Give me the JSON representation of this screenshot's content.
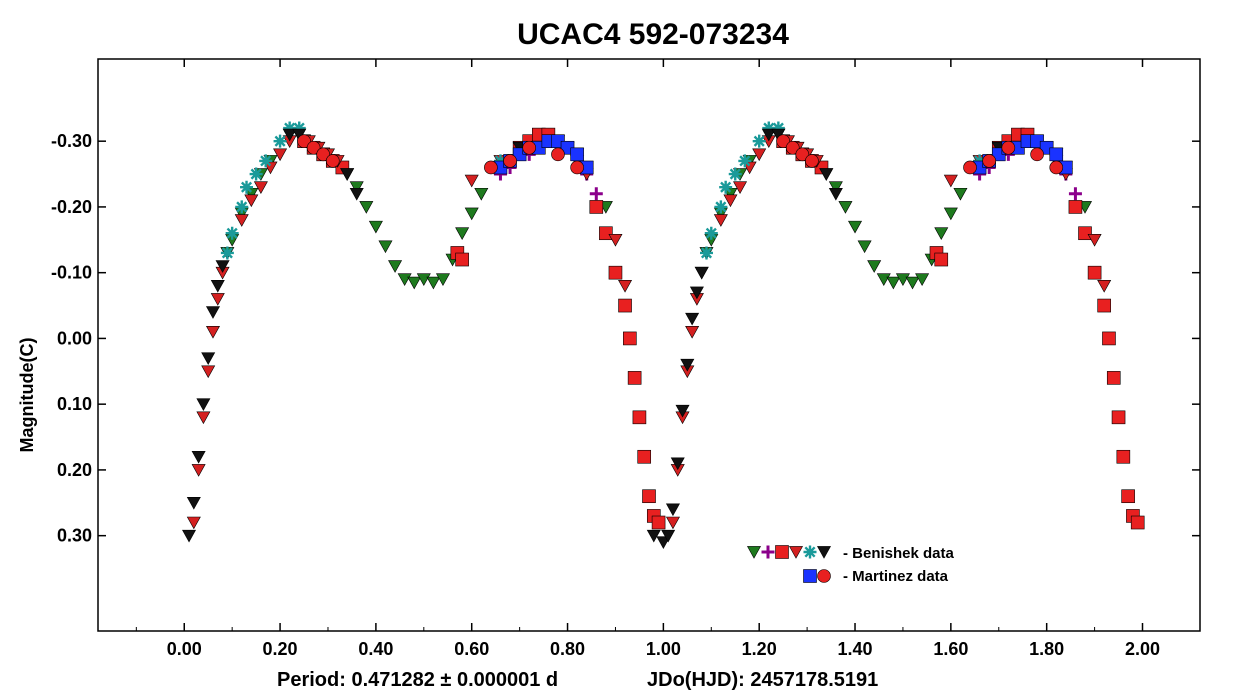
{
  "chart_data": {
    "type": "scatter",
    "title": "UCAC4 592-073234",
    "ylabel": "Magnitude(C)",
    "xlabel": "",
    "xlim": [
      -0.18,
      2.12
    ],
    "ylim": [
      0.445,
      -0.425
    ],
    "y_inverted": true,
    "grid": false,
    "legend_position": "lower-right",
    "x_ticks": [
      0.0,
      0.2,
      0.4,
      0.6,
      0.8,
      1.0,
      1.2,
      1.4,
      1.6,
      1.8,
      2.0
    ],
    "x_tick_labels": [
      "0.00",
      "0.20",
      "0.40",
      "0.60",
      "0.80",
      "1.00",
      "1.20",
      "1.40",
      "1.60",
      "1.80",
      "2.00"
    ],
    "y_ticks": [
      -0.3,
      -0.2,
      -0.1,
      0.0,
      0.1,
      0.2,
      0.3
    ],
    "y_tick_labels": [
      "-0.30",
      "-0.20",
      "-0.10",
      "0.00",
      "0.10",
      "0.20",
      "0.30"
    ],
    "footer": {
      "period": "Period: 0.471282 ± 0.000001 d",
      "epoch": "JDo(HJD): 2457178.5191"
    },
    "legend": [
      {
        "label": "- Benishek data",
        "markers": [
          {
            "shape": "triangle-down",
            "color": "#1e7a1e"
          },
          {
            "shape": "plus",
            "color": "#8b008b"
          },
          {
            "shape": "square",
            "color": "#e82020"
          },
          {
            "shape": "triangle-down",
            "color": "#d42020"
          },
          {
            "shape": "asterisk",
            "color": "#1a9a9a"
          },
          {
            "shape": "triangle-down",
            "color": "#111111"
          }
        ]
      },
      {
        "label": "- Martinez data",
        "markers": [
          {
            "shape": "square",
            "color": "#1a33ff"
          },
          {
            "shape": "circle",
            "color": "#e82020"
          }
        ]
      }
    ],
    "series": [
      {
        "name": "Benishek data (green)",
        "marker": "triangle-down",
        "color": "#1e7a1e",
        "points": [
          [
            0.09,
            -0.13
          ],
          [
            0.1,
            -0.15
          ],
          [
            0.12,
            -0.19
          ],
          [
            0.14,
            -0.22
          ],
          [
            0.16,
            -0.25
          ],
          [
            0.18,
            -0.27
          ],
          [
            0.36,
            -0.23
          ],
          [
            0.38,
            -0.2
          ],
          [
            0.4,
            -0.17
          ],
          [
            0.42,
            -0.14
          ],
          [
            0.44,
            -0.11
          ],
          [
            0.46,
            -0.09
          ],
          [
            0.48,
            -0.085
          ],
          [
            0.5,
            -0.09
          ],
          [
            0.52,
            -0.085
          ],
          [
            0.54,
            -0.09
          ],
          [
            0.56,
            -0.12
          ],
          [
            0.58,
            -0.16
          ],
          [
            0.6,
            -0.19
          ],
          [
            0.62,
            -0.22
          ],
          [
            0.88,
            -0.2
          ],
          [
            1.09,
            -0.13
          ],
          [
            1.1,
            -0.15
          ],
          [
            1.12,
            -0.19
          ],
          [
            1.14,
            -0.22
          ],
          [
            1.16,
            -0.25
          ],
          [
            1.18,
            -0.27
          ],
          [
            1.36,
            -0.23
          ],
          [
            1.38,
            -0.2
          ],
          [
            1.4,
            -0.17
          ],
          [
            1.42,
            -0.14
          ],
          [
            1.44,
            -0.11
          ],
          [
            1.46,
            -0.09
          ],
          [
            1.48,
            -0.085
          ],
          [
            1.5,
            -0.09
          ],
          [
            1.52,
            -0.085
          ],
          [
            1.54,
            -0.09
          ],
          [
            1.56,
            -0.12
          ],
          [
            1.58,
            -0.16
          ],
          [
            1.6,
            -0.19
          ],
          [
            1.62,
            -0.22
          ],
          [
            1.88,
            -0.2
          ]
        ]
      },
      {
        "name": "Benishek data (purple)",
        "marker": "plus",
        "color": "#8b008b",
        "points": [
          [
            0.66,
            -0.25
          ],
          [
            0.68,
            -0.26
          ],
          [
            0.72,
            -0.28
          ],
          [
            0.84,
            -0.25
          ],
          [
            0.86,
            -0.22
          ],
          [
            1.66,
            -0.25
          ],
          [
            1.68,
            -0.26
          ],
          [
            1.72,
            -0.28
          ],
          [
            1.84,
            -0.25
          ],
          [
            1.86,
            -0.22
          ]
        ]
      },
      {
        "name": "Benishek data (red squares)",
        "marker": "square",
        "color": "#e82020",
        "points": [
          [
            0.25,
            -0.3
          ],
          [
            0.27,
            -0.29
          ],
          [
            0.29,
            -0.28
          ],
          [
            0.31,
            -0.27
          ],
          [
            0.33,
            -0.26
          ],
          [
            0.57,
            -0.13
          ],
          [
            0.58,
            -0.12
          ],
          [
            0.7,
            -0.29
          ],
          [
            0.72,
            -0.3
          ],
          [
            0.74,
            -0.31
          ],
          [
            0.76,
            -0.31
          ],
          [
            0.86,
            -0.2
          ],
          [
            0.88,
            -0.16
          ],
          [
            0.9,
            -0.1
          ],
          [
            0.92,
            -0.05
          ],
          [
            0.93,
            0.0
          ],
          [
            0.94,
            0.06
          ],
          [
            0.95,
            0.12
          ],
          [
            0.96,
            0.18
          ],
          [
            0.97,
            0.24
          ],
          [
            0.98,
            0.27
          ],
          [
            0.99,
            0.28
          ],
          [
            1.25,
            -0.3
          ],
          [
            1.27,
            -0.29
          ],
          [
            1.29,
            -0.28
          ],
          [
            1.31,
            -0.27
          ],
          [
            1.33,
            -0.26
          ],
          [
            1.57,
            -0.13
          ],
          [
            1.58,
            -0.12
          ],
          [
            1.7,
            -0.29
          ],
          [
            1.72,
            -0.3
          ],
          [
            1.74,
            -0.31
          ],
          [
            1.76,
            -0.31
          ],
          [
            1.86,
            -0.2
          ],
          [
            1.88,
            -0.16
          ],
          [
            1.9,
            -0.1
          ],
          [
            1.92,
            -0.05
          ],
          [
            1.93,
            0.0
          ],
          [
            1.94,
            0.06
          ],
          [
            1.95,
            0.12
          ],
          [
            1.96,
            0.18
          ],
          [
            1.97,
            0.24
          ],
          [
            1.98,
            0.27
          ],
          [
            1.99,
            0.28
          ]
        ]
      },
      {
        "name": "Benishek data (red triangles)",
        "marker": "triangle-down",
        "color": "#d42020",
        "points": [
          [
            0.02,
            0.28
          ],
          [
            0.03,
            0.2
          ],
          [
            0.04,
            0.12
          ],
          [
            0.05,
            0.05
          ],
          [
            0.06,
            -0.01
          ],
          [
            0.07,
            -0.06
          ],
          [
            0.08,
            -0.1
          ],
          [
            0.12,
            -0.18
          ],
          [
            0.14,
            -0.21
          ],
          [
            0.16,
            -0.23
          ],
          [
            0.18,
            -0.26
          ],
          [
            0.2,
            -0.28
          ],
          [
            0.22,
            -0.3
          ],
          [
            0.24,
            -0.31
          ],
          [
            0.26,
            -0.3
          ],
          [
            0.28,
            -0.29
          ],
          [
            0.3,
            -0.28
          ],
          [
            0.32,
            -0.27
          ],
          [
            0.34,
            -0.25
          ],
          [
            0.6,
            -0.24
          ],
          [
            0.66,
            -0.27
          ],
          [
            0.8,
            -0.29
          ],
          [
            0.82,
            -0.27
          ],
          [
            0.84,
            -0.25
          ],
          [
            0.9,
            -0.15
          ],
          [
            0.92,
            -0.08
          ],
          [
            1.02,
            0.28
          ],
          [
            1.03,
            0.2
          ],
          [
            1.04,
            0.12
          ],
          [
            1.05,
            0.05
          ],
          [
            1.06,
            -0.01
          ],
          [
            1.07,
            -0.06
          ],
          [
            1.08,
            -0.1
          ],
          [
            1.12,
            -0.18
          ],
          [
            1.14,
            -0.21
          ],
          [
            1.16,
            -0.23
          ],
          [
            1.18,
            -0.26
          ],
          [
            1.2,
            -0.28
          ],
          [
            1.22,
            -0.3
          ],
          [
            1.24,
            -0.31
          ],
          [
            1.26,
            -0.3
          ],
          [
            1.28,
            -0.29
          ],
          [
            1.3,
            -0.28
          ],
          [
            1.32,
            -0.27
          ],
          [
            1.34,
            -0.25
          ],
          [
            1.6,
            -0.24
          ],
          [
            1.66,
            -0.27
          ],
          [
            1.8,
            -0.29
          ],
          [
            1.82,
            -0.27
          ],
          [
            1.84,
            -0.25
          ],
          [
            1.9,
            -0.15
          ],
          [
            1.92,
            -0.08
          ]
        ]
      },
      {
        "name": "Benishek data (teal)",
        "marker": "asterisk",
        "color": "#1a9a9a",
        "points": [
          [
            0.09,
            -0.13
          ],
          [
            0.1,
            -0.16
          ],
          [
            0.12,
            -0.2
          ],
          [
            0.13,
            -0.23
          ],
          [
            0.15,
            -0.25
          ],
          [
            0.17,
            -0.27
          ],
          [
            0.2,
            -0.3
          ],
          [
            0.22,
            -0.32
          ],
          [
            0.24,
            -0.32
          ],
          [
            0.64,
            -0.26
          ],
          [
            0.66,
            -0.27
          ],
          [
            1.09,
            -0.13
          ],
          [
            1.1,
            -0.16
          ],
          [
            1.12,
            -0.2
          ],
          [
            1.13,
            -0.23
          ],
          [
            1.15,
            -0.25
          ],
          [
            1.17,
            -0.27
          ],
          [
            1.2,
            -0.3
          ],
          [
            1.22,
            -0.32
          ],
          [
            1.24,
            -0.32
          ],
          [
            1.64,
            -0.26
          ],
          [
            1.66,
            -0.27
          ]
        ]
      },
      {
        "name": "Benishek data (black)",
        "marker": "triangle-down",
        "color": "#111111",
        "points": [
          [
            0.01,
            0.3
          ],
          [
            0.02,
            0.25
          ],
          [
            0.03,
            0.18
          ],
          [
            0.04,
            0.1
          ],
          [
            0.05,
            0.03
          ],
          [
            0.06,
            -0.04
          ],
          [
            0.07,
            -0.08
          ],
          [
            0.08,
            -0.11
          ],
          [
            0.22,
            -0.31
          ],
          [
            0.24,
            -0.31
          ],
          [
            0.34,
            -0.25
          ],
          [
            0.36,
            -0.22
          ],
          [
            0.7,
            -0.29
          ],
          [
            0.78,
            -0.3
          ],
          [
            0.82,
            -0.28
          ],
          [
            0.84,
            -0.26
          ],
          [
            0.98,
            0.3
          ],
          [
            1.0,
            0.31
          ],
          [
            1.01,
            0.3
          ],
          [
            1.02,
            0.26
          ],
          [
            1.03,
            0.19
          ],
          [
            1.04,
            0.11
          ],
          [
            1.05,
            0.04
          ],
          [
            1.06,
            -0.03
          ],
          [
            1.07,
            -0.07
          ],
          [
            1.08,
            -0.1
          ],
          [
            1.22,
            -0.31
          ],
          [
            1.24,
            -0.31
          ],
          [
            1.34,
            -0.25
          ],
          [
            1.36,
            -0.22
          ],
          [
            1.7,
            -0.29
          ],
          [
            1.78,
            -0.3
          ],
          [
            1.82,
            -0.28
          ],
          [
            1.84,
            -0.26
          ]
        ]
      },
      {
        "name": "Martinez data (blue)",
        "marker": "square",
        "color": "#1a33ff",
        "points": [
          [
            0.66,
            -0.26
          ],
          [
            0.68,
            -0.27
          ],
          [
            0.7,
            -0.28
          ],
          [
            0.72,
            -0.29
          ],
          [
            0.74,
            -0.29
          ],
          [
            0.76,
            -0.3
          ],
          [
            0.78,
            -0.3
          ],
          [
            0.8,
            -0.29
          ],
          [
            0.82,
            -0.28
          ],
          [
            0.84,
            -0.26
          ],
          [
            1.66,
            -0.26
          ],
          [
            1.68,
            -0.27
          ],
          [
            1.7,
            -0.28
          ],
          [
            1.72,
            -0.29
          ],
          [
            1.74,
            -0.29
          ],
          [
            1.76,
            -0.3
          ],
          [
            1.78,
            -0.3
          ],
          [
            1.8,
            -0.29
          ],
          [
            1.82,
            -0.28
          ],
          [
            1.84,
            -0.26
          ]
        ]
      },
      {
        "name": "Martinez data (red)",
        "marker": "circle",
        "color": "#e82020",
        "points": [
          [
            0.25,
            -0.3
          ],
          [
            0.27,
            -0.29
          ],
          [
            0.29,
            -0.28
          ],
          [
            0.31,
            -0.27
          ],
          [
            0.64,
            -0.26
          ],
          [
            0.68,
            -0.27
          ],
          [
            0.72,
            -0.29
          ],
          [
            0.78,
            -0.28
          ],
          [
            0.82,
            -0.26
          ],
          [
            1.25,
            -0.3
          ],
          [
            1.27,
            -0.29
          ],
          [
            1.29,
            -0.28
          ],
          [
            1.31,
            -0.27
          ],
          [
            1.64,
            -0.26
          ],
          [
            1.68,
            -0.27
          ],
          [
            1.72,
            -0.29
          ],
          [
            1.78,
            -0.28
          ],
          [
            1.82,
            -0.26
          ]
        ]
      }
    ]
  }
}
